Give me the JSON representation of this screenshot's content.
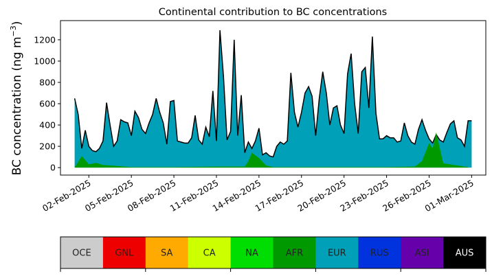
{
  "chart_data": {
    "type": "area",
    "title": "Continental contribution to BC concentrations",
    "ylabel": "BC concentration (ng m",
    "ylabel_exp": "−3",
    "ylabel_close": ")",
    "xlabel": "",
    "ylim": [
      -70,
      1380
    ],
    "xlim": [
      "2025-01-31",
      "2025-03-02"
    ],
    "grid": false,
    "x_ticks": [
      "02-Feb-2025",
      "05-Feb-2025",
      "08-Feb-2025",
      "11-Feb-2025",
      "14-Feb-2025",
      "17-Feb-2025",
      "20-Feb-2025",
      "23-Feb-2025",
      "26-Feb-2025",
      "01-Mar-2025"
    ],
    "y_ticks": [
      0,
      200,
      400,
      600,
      800,
      1000,
      1200
    ],
    "series": [
      {
        "name": "AFR",
        "color": "#009900",
        "x": [
          "2025-02-01",
          "2025-02-01T12",
          "2025-02-02",
          "2025-02-02T12",
          "2025-02-03",
          "2025-02-04",
          "2025-02-05",
          "2025-02-08",
          "2025-02-11",
          "2025-02-13",
          "2025-02-13T06",
          "2025-02-13T12",
          "2025-02-14",
          "2025-02-14T12",
          "2025-02-15",
          "2025-02-17",
          "2025-02-20",
          "2025-02-23",
          "2025-02-25",
          "2025-02-25T12",
          "2025-02-26",
          "2025-02-26T06",
          "2025-02-26T12",
          "2025-02-27",
          "2025-02-28T18"
        ],
        "values": [
          0,
          110,
          30,
          45,
          25,
          15,
          5,
          5,
          10,
          10,
          60,
          140,
          90,
          20,
          5,
          5,
          5,
          5,
          10,
          60,
          230,
          180,
          330,
          40,
          5
        ]
      },
      {
        "name": "EUR",
        "color": "#00a0b8",
        "x": [
          "2025-02-01",
          "2025-02-01T06",
          "2025-02-01T12",
          "2025-02-01T18",
          "2025-02-02",
          "2025-02-02T06",
          "2025-02-02T12",
          "2025-02-02T18",
          "2025-02-03",
          "2025-02-03T06",
          "2025-02-03T12",
          "2025-02-03T18",
          "2025-02-04",
          "2025-02-04T06",
          "2025-02-04T12",
          "2025-02-04T18",
          "2025-02-05",
          "2025-02-05T06",
          "2025-02-05T12",
          "2025-02-05T18",
          "2025-02-06",
          "2025-02-06T06",
          "2025-02-06T12",
          "2025-02-06T18",
          "2025-02-07",
          "2025-02-07T06",
          "2025-02-07T12",
          "2025-02-07T18",
          "2025-02-08",
          "2025-02-08T06",
          "2025-02-08T12",
          "2025-02-08T18",
          "2025-02-09",
          "2025-02-09T06",
          "2025-02-09T12",
          "2025-02-09T18",
          "2025-02-10",
          "2025-02-10T06",
          "2025-02-10T12",
          "2025-02-10T18",
          "2025-02-11",
          "2025-02-11T06",
          "2025-02-11T12",
          "2025-02-11T18",
          "2025-02-12",
          "2025-02-12T06",
          "2025-02-12T12",
          "2025-02-12T18",
          "2025-02-13",
          "2025-02-13T06",
          "2025-02-13T12",
          "2025-02-13T18",
          "2025-02-14",
          "2025-02-14T06",
          "2025-02-14T12",
          "2025-02-14T18",
          "2025-02-15",
          "2025-02-15T06",
          "2025-02-15T12",
          "2025-02-15T18",
          "2025-02-16",
          "2025-02-16T06",
          "2025-02-16T12",
          "2025-02-16T18",
          "2025-02-17",
          "2025-02-17T06",
          "2025-02-17T12",
          "2025-02-17T18",
          "2025-02-18",
          "2025-02-18T06",
          "2025-02-18T12",
          "2025-02-18T18",
          "2025-02-19",
          "2025-02-19T06",
          "2025-02-19T12",
          "2025-02-19T18",
          "2025-02-20",
          "2025-02-20T06",
          "2025-02-20T12",
          "2025-02-20T18",
          "2025-02-21",
          "2025-02-21T06",
          "2025-02-21T12",
          "2025-02-21T18",
          "2025-02-22",
          "2025-02-22T06",
          "2025-02-22T12",
          "2025-02-22T18",
          "2025-02-23",
          "2025-02-23T06",
          "2025-02-23T12",
          "2025-02-23T18",
          "2025-02-24",
          "2025-02-24T06",
          "2025-02-24T12",
          "2025-02-24T18",
          "2025-02-25",
          "2025-02-25T06",
          "2025-02-25T12",
          "2025-02-25T18",
          "2025-02-26",
          "2025-02-26T06",
          "2025-02-26T12",
          "2025-02-26T18",
          "2025-02-27",
          "2025-02-27T06",
          "2025-02-27T12",
          "2025-02-27T18",
          "2025-02-28",
          "2025-02-28T06",
          "2025-02-28T12",
          "2025-02-28T18",
          "2025-03-01"
        ],
        "values": [
          650,
          500,
          180,
          350,
          200,
          160,
          150,
          180,
          250,
          610,
          400,
          200,
          250,
          450,
          430,
          420,
          300,
          530,
          470,
          360,
          320,
          420,
          500,
          650,
          520,
          420,
          220,
          620,
          630,
          250,
          240,
          230,
          230,
          280,
          490,
          260,
          220,
          380,
          290,
          720,
          250,
          1290,
          850,
          260,
          340,
          1200,
          300,
          680,
          140,
          240,
          180,
          250,
          370,
          120,
          140,
          110,
          100,
          200,
          240,
          220,
          250,
          890,
          520,
          380,
          520,
          700,
          760,
          670,
          300,
          650,
          900,
          700,
          400,
          560,
          580,
          400,
          320,
          880,
          1070,
          600,
          320,
          900,
          940,
          560,
          1230,
          510,
          270,
          270,
          300,
          280,
          280,
          240,
          250,
          420,
          300,
          240,
          220,
          360,
          450,
          350,
          270,
          230,
          310,
          260,
          240,
          330,
          410,
          440,
          280,
          260,
          200,
          440,
          440
        ]
      }
    ],
    "legend": [
      {
        "label": "OCE",
        "color": "#cccccc",
        "text_color": "#222222"
      },
      {
        "label": "GNL",
        "color": "#ee0000",
        "text_color": "#222222"
      },
      {
        "label": "SA",
        "color": "#ffaa00",
        "text_color": "#222222"
      },
      {
        "label": "CA",
        "color": "#ccff00",
        "text_color": "#222222"
      },
      {
        "label": "NA",
        "color": "#00dd00",
        "text_color": "#222222"
      },
      {
        "label": "AFR",
        "color": "#009900",
        "text_color": "#222222"
      },
      {
        "label": "EUR",
        "color": "#00a0b8",
        "text_color": "#222222"
      },
      {
        "label": "RUS",
        "color": "#0033dd",
        "text_color": "#222222"
      },
      {
        "label": "ASI",
        "color": "#6600aa",
        "text_color": "#222222"
      },
      {
        "label": "AUS",
        "color": "#000000",
        "text_color": "#ffffff"
      }
    ]
  }
}
